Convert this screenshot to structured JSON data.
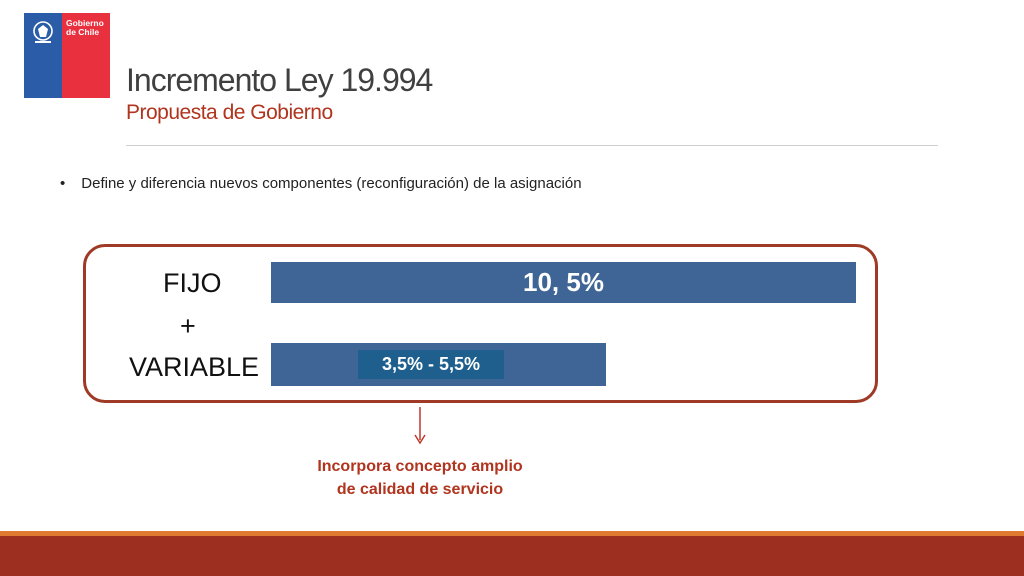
{
  "logo": {
    "line1": "Gobierno",
    "line2": "de Chile"
  },
  "title": "Incremento Ley 19.994",
  "subtitle": "Propuesta de Gobierno",
  "bullet": {
    "marker": "•",
    "text": "Define y diferencia nuevos componentes (reconfiguración) de la asignación"
  },
  "diagram": {
    "fijo_label": "FIJO",
    "plus": "+",
    "variable_label": "VARIABLE",
    "fijo_value": "10, 5%",
    "variable_value": "3,5% - 5,5%"
  },
  "note": {
    "line1": "Incorpora concepto amplio",
    "line2": "de calidad de servicio"
  },
  "colors": {
    "bar": "#3f6597",
    "accent_red": "#b0341e",
    "frame": "#9e3a25",
    "footer": "#9c2f20",
    "footer_stripe": "#e07a30",
    "logo_blue": "#2b5ca8",
    "logo_red": "#e8303f"
  }
}
